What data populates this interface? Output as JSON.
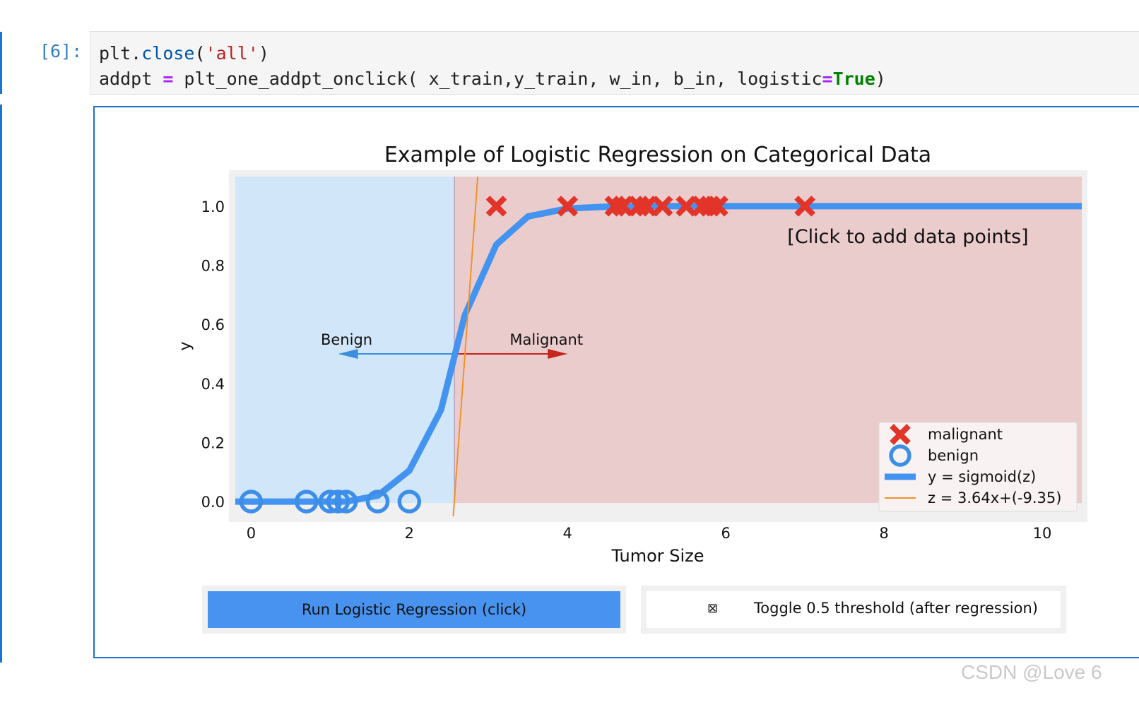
{
  "cell": {
    "prompt": "[6]:",
    "code_line1": {
      "a": "plt.",
      "fn": "close",
      "b": "(",
      "str": "'all'",
      "c": ")"
    },
    "code_line2": {
      "a": "addpt ",
      "op": "=",
      "b": " plt_one_addpt_onclick( x_train,y_train, w_in, b_in, logistic",
      "op2": "=",
      "kw": "True",
      "c": ")"
    }
  },
  "chart_data": {
    "type": "scatter",
    "title": "Example of Logistic Regression on Categorical Data",
    "xlabel": "Tumor Size",
    "ylabel": "y",
    "xlim": [
      -0.2,
      10.5
    ],
    "ylim": [
      -0.05,
      1.1
    ],
    "xticks": [
      "0",
      "2",
      "4",
      "6",
      "8",
      "10"
    ],
    "yticks": [
      "0.0",
      "0.2",
      "0.4",
      "0.6",
      "0.8",
      "1.0"
    ],
    "annotation": "[Click to add data points]",
    "threshold_x": 2.57,
    "regions": {
      "left_color": "#d2e6f9",
      "right_color": "#ebcccd",
      "border_color": "#f0f0f0"
    },
    "arrows": [
      {
        "label": "Benign",
        "color": "#3a8fe0",
        "from": 2.57,
        "to": 1.1,
        "y": 0.5
      },
      {
        "label": "Malignant",
        "color": "#c6241f",
        "from": 2.57,
        "to": 4.0,
        "y": 0.5
      }
    ],
    "series": [
      {
        "name": "malignant",
        "marker": "x",
        "color": "#e3342a",
        "x": [
          3.1,
          4.0,
          4.6,
          4.7,
          4.9,
          5.0,
          5.2,
          5.5,
          5.7,
          5.8,
          5.9,
          7.0
        ],
        "y": [
          1,
          1,
          1,
          1,
          1,
          1,
          1,
          1,
          1,
          1,
          1,
          1
        ]
      },
      {
        "name": "benign",
        "marker": "o",
        "color": "#3d8ee8",
        "x": [
          0.0,
          0.7,
          1.0,
          1.1,
          1.2,
          1.6,
          2.0
        ],
        "y": [
          0,
          0,
          0,
          0,
          0,
          0,
          0
        ]
      },
      {
        "name": "y = sigmoid(z)",
        "marker": "line",
        "color": "#4393f0",
        "x": [
          -0.2,
          1.2,
          1.6,
          2.0,
          2.4,
          2.7,
          3.1,
          3.5,
          4.0,
          4.5,
          5.0,
          6.0,
          10.5
        ],
        "y": [
          0.0,
          0.0,
          0.02,
          0.105,
          0.31,
          0.63,
          0.87,
          0.965,
          0.992,
          0.998,
          1.0,
          1.0,
          1.0
        ]
      },
      {
        "name": "z = 3.64x+(-9.35)",
        "marker": "thinline",
        "color": "#f0922d",
        "x": [
          2.555,
          2.865
        ],
        "y": [
          -0.05,
          1.1
        ]
      }
    ],
    "legend": [
      "malignant",
      "benign",
      "y = sigmoid(z)",
      "z = 3.64x+(-9.35)"
    ],
    "legend_position": "bottom-right"
  },
  "buttons": {
    "run_label": "Run Logistic Regression (click)",
    "toggle_check": "⊠",
    "toggle_label": "Toggle 0.5 threshold (after regression)"
  },
  "watermark": "CSDN @Love 6"
}
